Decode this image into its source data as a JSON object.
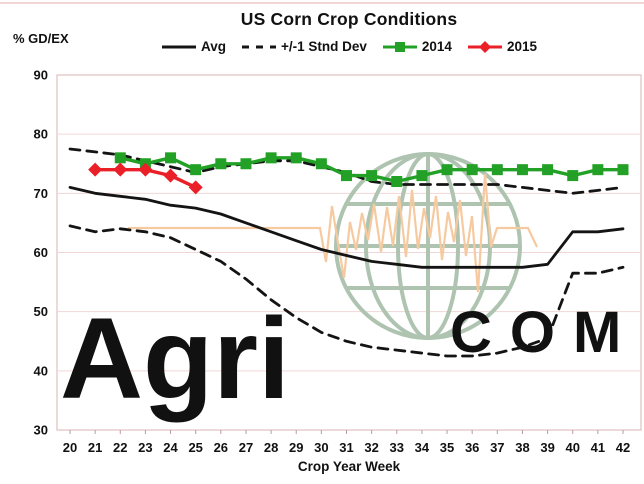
{
  "page": {
    "title": "US Corn Crop Conditions",
    "y_axis_unit_label": "% GD/EX",
    "x_axis_label": "Crop Year Week"
  },
  "legend": [
    {
      "label": "Avg",
      "swatch": "solid-line",
      "color": "#141414"
    },
    {
      "label": "+/-1 Stnd Dev",
      "swatch": "dashed-line",
      "color": "#141414"
    },
    {
      "label": "2014",
      "swatch": "square-line",
      "color": "#23a126"
    },
    {
      "label": "2015",
      "swatch": "diamond-line",
      "color": "#ea1f28"
    }
  ],
  "colors": {
    "avg_line": "#141414",
    "std_dev_line": "#141414",
    "series_2014": "#23a126",
    "series_2015": "#ea1f28",
    "gridline": "#f0d6d6",
    "plot_frame": "#dfc0c0",
    "tick_mark": "#bd9a9a",
    "watermark_globe": "#aec4b0",
    "watermark_ekg": "#f6caa0",
    "watermark_text": "rgba(130,155,130,0.08)"
  },
  "watermark": {
    "left_text": "Agri",
    "right_text": "COM"
  },
  "chart_data": {
    "type": "line",
    "title": "US Corn Crop Conditions",
    "xlabel": "Crop Year Week",
    "ylabel": "% GD/EX",
    "x_ticks": [
      20,
      21,
      22,
      23,
      24,
      25,
      26,
      27,
      28,
      29,
      30,
      31,
      32,
      33,
      34,
      35,
      36,
      37,
      38,
      39,
      40,
      41,
      42
    ],
    "y_ticks": [
      90,
      80,
      70,
      60,
      50,
      40,
      30
    ],
    "ylim": [
      30,
      90
    ],
    "grid": true,
    "legend_position": "top-center",
    "series": [
      {
        "name": "Avg",
        "style": "solid",
        "marker": "none",
        "color": "#141414",
        "x_start": 20,
        "values": [
          71,
          70,
          69.5,
          69,
          68,
          67.5,
          66.5,
          65,
          63.5,
          62,
          60.5,
          59.5,
          58.5,
          58,
          57.5,
          57.5,
          57.5,
          57.5,
          57.5,
          58,
          63.5,
          63.5,
          64
        ]
      },
      {
        "name": "+1 Stnd Dev",
        "style": "dashed",
        "marker": "none",
        "color": "#141414",
        "x_start": 20,
        "values": [
          77.5,
          77,
          76.5,
          75.5,
          74.5,
          73.5,
          74.5,
          75,
          75.5,
          75.5,
          74.5,
          73.5,
          72,
          71.5,
          71.5,
          71.5,
          71.5,
          71.5,
          71,
          70.5,
          70,
          70.5,
          71
        ]
      },
      {
        "name": "-1 Stnd Dev",
        "style": "dashed",
        "marker": "none",
        "color": "#141414",
        "x_start": 20,
        "values": [
          64.5,
          63.5,
          64,
          63.5,
          62.5,
          60.5,
          58.5,
          55.5,
          52,
          49,
          46.5,
          45,
          44,
          43.5,
          43,
          42.5,
          42.5,
          43,
          44,
          45.5,
          56.5,
          56.5,
          57.5
        ]
      },
      {
        "name": "2014",
        "style": "solid",
        "marker": "square",
        "color": "#23a126",
        "x_start": 22,
        "values": [
          76,
          75,
          76,
          74,
          75,
          75,
          76,
          76,
          75,
          73,
          73,
          72,
          73,
          74,
          74,
          74,
          74,
          74,
          73,
          74,
          74
        ]
      },
      {
        "name": "2015",
        "style": "solid",
        "marker": "diamond",
        "color": "#ea1f28",
        "x_start": 21,
        "values": [
          74,
          74,
          74,
          73,
          71
        ]
      }
    ]
  }
}
